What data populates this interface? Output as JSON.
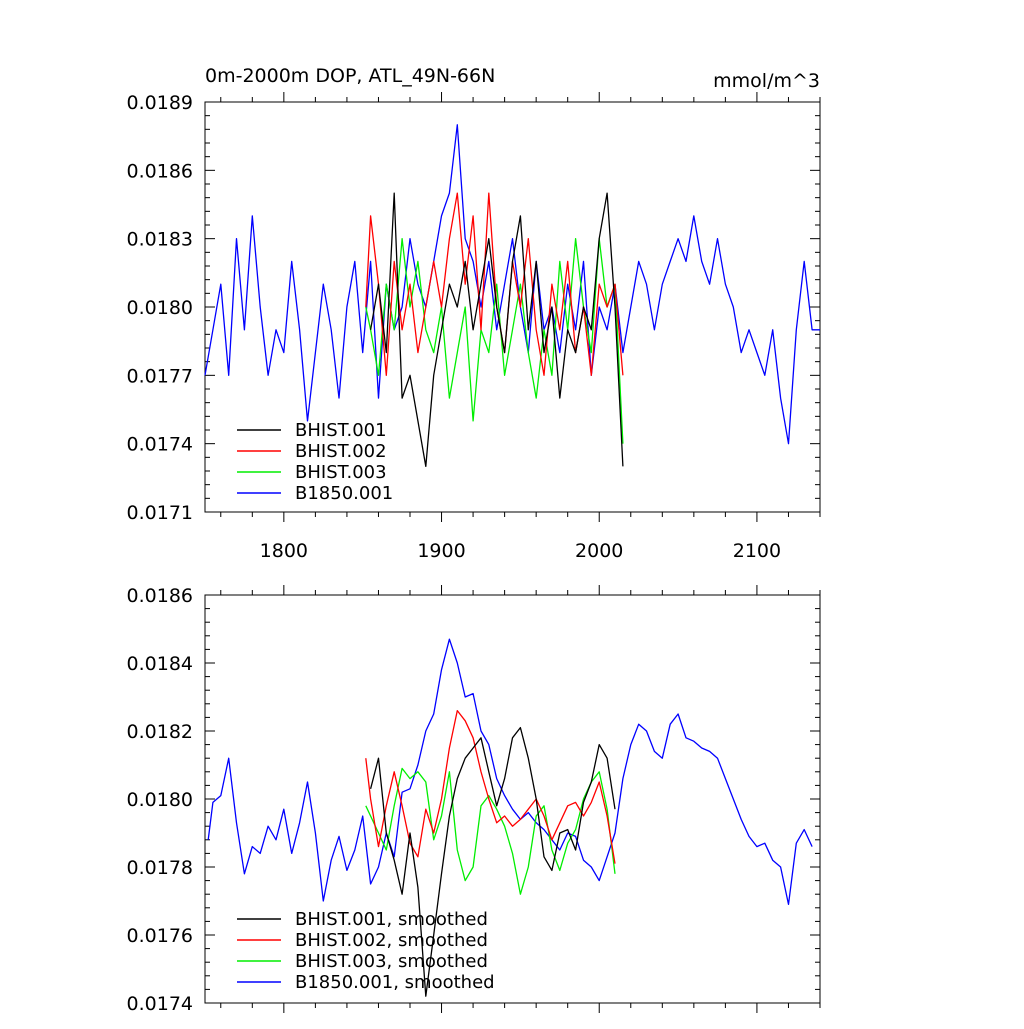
{
  "chart_data": [
    {
      "type": "line",
      "title": "0m-2000m DOP, ATL_49N-66N",
      "units_label": "mmol/m^3",
      "xlim": [
        1750,
        2140
      ],
      "ylim": [
        0.0171,
        0.0189
      ],
      "x_ticks": [
        1800,
        1900,
        2000,
        2100
      ],
      "x_tick_labels": [
        "1800",
        "1900",
        "2000",
        "2100"
      ],
      "y_ticks": [
        0.0171,
        0.0174,
        0.0177,
        0.018,
        0.0183,
        0.0186,
        0.0189
      ],
      "y_tick_labels": [
        "0.0171",
        "0.0174",
        "0.0177",
        "0.0180",
        "0.0183",
        "0.0186",
        "0.0189"
      ],
      "legend_position": "bottom-left",
      "series": [
        {
          "name": "BHIST.001",
          "color": "#000000",
          "x": [
            1855,
            1860,
            1865,
            1870,
            1875,
            1880,
            1885,
            1890,
            1895,
            1900,
            1905,
            1910,
            1915,
            1920,
            1925,
            1930,
            1935,
            1940,
            1945,
            1950,
            1955,
            1960,
            1965,
            1970,
            1975,
            1980,
            1985,
            1990,
            1995,
            2000,
            2005,
            2010,
            2015
          ],
          "y": [
            0.0179,
            0.0181,
            0.0178,
            0.0185,
            0.0176,
            0.0177,
            0.0175,
            0.0173,
            0.0177,
            0.0179,
            0.0181,
            0.018,
            0.0182,
            0.0179,
            0.0181,
            0.0183,
            0.018,
            0.0178,
            0.0182,
            0.0184,
            0.0179,
            0.0182,
            0.0178,
            0.018,
            0.0176,
            0.0179,
            0.0178,
            0.018,
            0.0179,
            0.0183,
            0.0185,
            0.018,
            0.0173
          ]
        },
        {
          "name": "BHIST.002",
          "color": "#ff0000",
          "x": [
            1852,
            1855,
            1860,
            1865,
            1870,
            1875,
            1880,
            1885,
            1890,
            1895,
            1900,
            1905,
            1910,
            1915,
            1920,
            1925,
            1930,
            1935,
            1940,
            1945,
            1950,
            1955,
            1960,
            1965,
            1970,
            1975,
            1980,
            1985,
            1990,
            1995,
            2000,
            2005,
            2010,
            2015
          ],
          "y": [
            0.018,
            0.0184,
            0.0181,
            0.0177,
            0.0182,
            0.0179,
            0.0181,
            0.0178,
            0.018,
            0.0182,
            0.018,
            0.0183,
            0.0185,
            0.0181,
            0.0184,
            0.0179,
            0.0185,
            0.018,
            0.0178,
            0.0182,
            0.018,
            0.0183,
            0.0179,
            0.0177,
            0.0181,
            0.0179,
            0.0182,
            0.0178,
            0.018,
            0.0177,
            0.0181,
            0.018,
            0.0181,
            0.0177
          ]
        },
        {
          "name": "BHIST.003",
          "color": "#00ee00",
          "x": [
            1852,
            1855,
            1860,
            1865,
            1870,
            1875,
            1880,
            1885,
            1890,
            1895,
            1900,
            1905,
            1910,
            1915,
            1920,
            1925,
            1930,
            1935,
            1940,
            1945,
            1950,
            1955,
            1960,
            1965,
            1970,
            1975,
            1980,
            1985,
            1990,
            1995,
            2000,
            2005,
            2010,
            2015
          ],
          "y": [
            0.018,
            0.0179,
            0.0177,
            0.0181,
            0.0179,
            0.0183,
            0.018,
            0.0182,
            0.0179,
            0.0178,
            0.018,
            0.0176,
            0.0178,
            0.018,
            0.0175,
            0.0179,
            0.0178,
            0.0181,
            0.0177,
            0.0179,
            0.0181,
            0.0178,
            0.0176,
            0.0179,
            0.0177,
            0.0182,
            0.0179,
            0.0183,
            0.018,
            0.0178,
            0.0183,
            0.018,
            0.0181,
            0.0174
          ]
        },
        {
          "name": "B1850.001",
          "color": "#0000ff",
          "x": [
            1750,
            1755,
            1760,
            1765,
            1770,
            1775,
            1780,
            1785,
            1790,
            1795,
            1800,
            1805,
            1810,
            1815,
            1820,
            1825,
            1830,
            1835,
            1840,
            1845,
            1850,
            1855,
            1860,
            1865,
            1870,
            1875,
            1880,
            1885,
            1890,
            1895,
            1900,
            1905,
            1910,
            1915,
            1920,
            1925,
            1930,
            1935,
            1940,
            1945,
            1950,
            1955,
            1960,
            1965,
            1970,
            1975,
            1980,
            1985,
            1990,
            1995,
            2000,
            2005,
            2010,
            2015,
            2020,
            2025,
            2030,
            2035,
            2040,
            2045,
            2050,
            2055,
            2060,
            2065,
            2070,
            2075,
            2080,
            2085,
            2090,
            2095,
            2100,
            2105,
            2110,
            2115,
            2120,
            2125,
            2130,
            2135,
            2140
          ],
          "y": [
            0.0177,
            0.0179,
            0.0181,
            0.0177,
            0.0183,
            0.0179,
            0.0184,
            0.018,
            0.0177,
            0.0179,
            0.0178,
            0.0182,
            0.0179,
            0.0175,
            0.0178,
            0.0181,
            0.0179,
            0.0176,
            0.018,
            0.0182,
            0.0178,
            0.0182,
            0.0176,
            0.0181,
            0.0179,
            0.018,
            0.0183,
            0.0181,
            0.018,
            0.0182,
            0.0184,
            0.0185,
            0.0188,
            0.0183,
            0.0182,
            0.018,
            0.0182,
            0.0179,
            0.0181,
            0.0183,
            0.018,
            0.0178,
            0.0182,
            0.0179,
            0.018,
            0.0178,
            0.0181,
            0.0179,
            0.0182,
            0.0177,
            0.018,
            0.0179,
            0.0181,
            0.0178,
            0.018,
            0.0182,
            0.0181,
            0.0179,
            0.0181,
            0.0182,
            0.0183,
            0.0182,
            0.0184,
            0.0182,
            0.0181,
            0.0183,
            0.0181,
            0.018,
            0.0178,
            0.0179,
            0.0178,
            0.0177,
            0.0179,
            0.0176,
            0.0174,
            0.0179,
            0.0182,
            0.0179,
            0.0179
          ]
        }
      ]
    },
    {
      "type": "line",
      "xlim": [
        1750,
        2140
      ],
      "ylim": [
        0.0174,
        0.0186
      ],
      "x_ticks": [
        1800,
        1900,
        2000,
        2100
      ],
      "y_ticks": [
        0.0174,
        0.0176,
        0.0178,
        0.018,
        0.0182,
        0.0184,
        0.0186
      ],
      "y_tick_labels": [
        "0.0174",
        "0.0176",
        "0.0178",
        "0.0180",
        "0.0182",
        "0.0184",
        "0.0186"
      ],
      "legend_position": "bottom-left",
      "series": [
        {
          "name": "BHIST.001, smoothed",
          "color": "#000000",
          "x": [
            1855,
            1860,
            1865,
            1870,
            1875,
            1880,
            1885,
            1890,
            1895,
            1900,
            1905,
            1910,
            1915,
            1920,
            1925,
            1930,
            1935,
            1940,
            1945,
            1950,
            1955,
            1960,
            1965,
            1970,
            1975,
            1980,
            1985,
            1990,
            1995,
            2000,
            2005,
            2010
          ],
          "y": [
            0.01803,
            0.01812,
            0.0179,
            0.01782,
            0.01772,
            0.0179,
            0.01774,
            0.01742,
            0.0176,
            0.01778,
            0.01795,
            0.01806,
            0.01812,
            0.01815,
            0.01818,
            0.01808,
            0.01798,
            0.01806,
            0.01818,
            0.01821,
            0.01812,
            0.018,
            0.01783,
            0.01779,
            0.0179,
            0.01791,
            0.01785,
            0.01799,
            0.01805,
            0.01816,
            0.01812,
            0.01797
          ]
        },
        {
          "name": "BHIST.002, smoothed",
          "color": "#ff0000",
          "x": [
            1852,
            1855,
            1860,
            1865,
            1870,
            1875,
            1880,
            1885,
            1890,
            1895,
            1900,
            1905,
            1910,
            1915,
            1920,
            1925,
            1930,
            1935,
            1940,
            1945,
            1950,
            1955,
            1960,
            1965,
            1970,
            1975,
            1980,
            1985,
            1990,
            1995,
            2000,
            2005,
            2010
          ],
          "y": [
            0.01812,
            0.018,
            0.01786,
            0.01798,
            0.01808,
            0.01798,
            0.01787,
            0.01783,
            0.01797,
            0.0179,
            0.018,
            0.01815,
            0.01826,
            0.01823,
            0.01818,
            0.01808,
            0.018,
            0.01793,
            0.01795,
            0.01792,
            0.01794,
            0.01797,
            0.018,
            0.01795,
            0.01788,
            0.01793,
            0.01798,
            0.01799,
            0.01795,
            0.01799,
            0.01805,
            0.01795,
            0.01781
          ]
        },
        {
          "name": "BHIST.003, smoothed",
          "color": "#00ee00",
          "x": [
            1852,
            1855,
            1860,
            1865,
            1870,
            1875,
            1880,
            1885,
            1890,
            1895,
            1900,
            1905,
            1910,
            1915,
            1920,
            1925,
            1930,
            1935,
            1940,
            1945,
            1950,
            1955,
            1960,
            1965,
            1970,
            1975,
            1980,
            1985,
            1990,
            1995,
            2000,
            2005,
            2010
          ],
          "y": [
            0.01798,
            0.01795,
            0.0179,
            0.01785,
            0.01798,
            0.01809,
            0.01806,
            0.01808,
            0.01805,
            0.01788,
            0.01795,
            0.01808,
            0.01785,
            0.01776,
            0.0178,
            0.01798,
            0.01801,
            0.01797,
            0.01792,
            0.01784,
            0.01772,
            0.0178,
            0.01795,
            0.01798,
            0.01785,
            0.01779,
            0.01787,
            0.01791,
            0.018,
            0.01805,
            0.01808,
            0.01797,
            0.01778
          ]
        },
        {
          "name": "B1850.001, smoothed",
          "color": "#0000ff",
          "x": [
            1752,
            1755,
            1760,
            1765,
            1770,
            1775,
            1780,
            1785,
            1790,
            1795,
            1800,
            1805,
            1810,
            1815,
            1820,
            1825,
            1830,
            1835,
            1840,
            1845,
            1850,
            1855,
            1860,
            1865,
            1870,
            1875,
            1880,
            1885,
            1890,
            1895,
            1900,
            1905,
            1910,
            1915,
            1920,
            1925,
            1930,
            1935,
            1940,
            1945,
            1950,
            1955,
            1960,
            1965,
            1970,
            1975,
            1980,
            1985,
            1990,
            1995,
            2000,
            2005,
            2010,
            2015,
            2020,
            2025,
            2030,
            2035,
            2040,
            2045,
            2050,
            2055,
            2060,
            2065,
            2070,
            2075,
            2080,
            2085,
            2090,
            2095,
            2100,
            2105,
            2110,
            2115,
            2120,
            2125,
            2130,
            2135
          ],
          "y": [
            0.01788,
            0.01799,
            0.01801,
            0.01812,
            0.01793,
            0.01778,
            0.01786,
            0.01784,
            0.01792,
            0.01788,
            0.01797,
            0.01784,
            0.01793,
            0.01805,
            0.0179,
            0.0177,
            0.01782,
            0.01789,
            0.01779,
            0.01785,
            0.01795,
            0.01775,
            0.0178,
            0.0179,
            0.01783,
            0.01802,
            0.01803,
            0.0181,
            0.0182,
            0.01825,
            0.01838,
            0.01847,
            0.0184,
            0.0183,
            0.01831,
            0.0182,
            0.01816,
            0.01806,
            0.01801,
            0.01797,
            0.01794,
            0.01796,
            0.01793,
            0.01791,
            0.01788,
            0.01785,
            0.0179,
            0.01789,
            0.01782,
            0.0178,
            0.01776,
            0.01783,
            0.0179,
            0.01806,
            0.01816,
            0.01822,
            0.0182,
            0.01814,
            0.01812,
            0.01822,
            0.01825,
            0.01818,
            0.01817,
            0.01815,
            0.01814,
            0.01812,
            0.01806,
            0.018,
            0.01794,
            0.01789,
            0.01786,
            0.01787,
            0.01782,
            0.0178,
            0.01769,
            0.01787,
            0.01791,
            0.01786
          ]
        }
      ]
    }
  ]
}
